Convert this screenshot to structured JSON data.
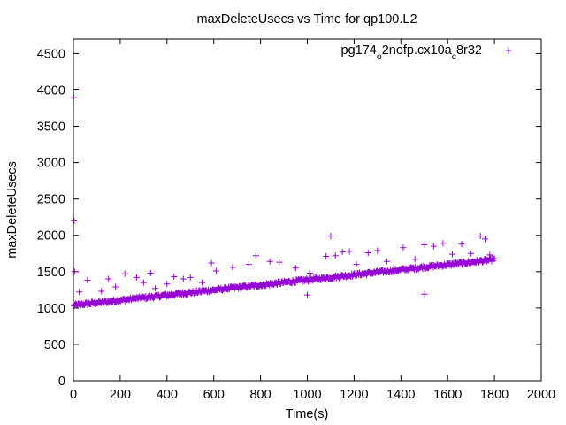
{
  "chart_data": {
    "type": "scatter",
    "title": "maxDeleteUsecs vs Time for qp100.L2",
    "xlabel": "Time(s)",
    "ylabel": "maxDeleteUsecs",
    "xlim": [
      0,
      2000
    ],
    "ylim": [
      0,
      4700
    ],
    "xticks": [
      "0",
      "200",
      "400",
      "600",
      "800",
      "1000",
      "1200",
      "1400",
      "1600",
      "1800",
      "2000"
    ],
    "yticks": [
      "0",
      "500",
      "1000",
      "1500",
      "2000",
      "2500",
      "3000",
      "3500",
      "4000",
      "4500"
    ],
    "xtick_values": [
      0,
      200,
      400,
      600,
      800,
      1000,
      1200,
      1400,
      1600,
      1800,
      2000
    ],
    "ytick_values": [
      0,
      500,
      1000,
      1500,
      2000,
      2500,
      3000,
      3500,
      4000,
      4500
    ],
    "grid": false,
    "legend_position": "top-right",
    "marker_color": "#9400d3",
    "series": [
      {
        "name_parts": [
          {
            "text": "pg174",
            "sub": false
          },
          {
            "text": "o",
            "sub": true
          },
          {
            "text": "2nofp.cx10a",
            "sub": false
          },
          {
            "text": "c",
            "sub": true
          },
          {
            "text": "8r32",
            "sub": false
          }
        ],
        "trend": {
          "x_start": 0,
          "x_end": 1800,
          "y_start": 1030,
          "y_end": 1660,
          "count": 600
        },
        "outliers": [
          {
            "x": 2,
            "y": 3900
          },
          {
            "x": 3,
            "y": 2200
          },
          {
            "x": 5,
            "y": 1500
          },
          {
            "x": 25,
            "y": 1220
          },
          {
            "x": 60,
            "y": 1380
          },
          {
            "x": 120,
            "y": 1230
          },
          {
            "x": 150,
            "y": 1400
          },
          {
            "x": 180,
            "y": 1290
          },
          {
            "x": 220,
            "y": 1470
          },
          {
            "x": 270,
            "y": 1420
          },
          {
            "x": 300,
            "y": 1350
          },
          {
            "x": 330,
            "y": 1480
          },
          {
            "x": 350,
            "y": 1270
          },
          {
            "x": 400,
            "y": 1330
          },
          {
            "x": 430,
            "y": 1430
          },
          {
            "x": 470,
            "y": 1400
          },
          {
            "x": 500,
            "y": 1420
          },
          {
            "x": 550,
            "y": 1350
          },
          {
            "x": 590,
            "y": 1620
          },
          {
            "x": 610,
            "y": 1510
          },
          {
            "x": 680,
            "y": 1560
          },
          {
            "x": 750,
            "y": 1600
          },
          {
            "x": 780,
            "y": 1720
          },
          {
            "x": 840,
            "y": 1640
          },
          {
            "x": 880,
            "y": 1630
          },
          {
            "x": 950,
            "y": 1550
          },
          {
            "x": 1000,
            "y": 1180
          },
          {
            "x": 1010,
            "y": 1480
          },
          {
            "x": 1080,
            "y": 1710
          },
          {
            "x": 1100,
            "y": 1990
          },
          {
            "x": 1120,
            "y": 1720
          },
          {
            "x": 1150,
            "y": 1770
          },
          {
            "x": 1180,
            "y": 1780
          },
          {
            "x": 1210,
            "y": 1600
          },
          {
            "x": 1260,
            "y": 1760
          },
          {
            "x": 1300,
            "y": 1790
          },
          {
            "x": 1340,
            "y": 1640
          },
          {
            "x": 1410,
            "y": 1830
          },
          {
            "x": 1460,
            "y": 1670
          },
          {
            "x": 1500,
            "y": 1190
          },
          {
            "x": 1500,
            "y": 1870
          },
          {
            "x": 1540,
            "y": 1850
          },
          {
            "x": 1580,
            "y": 1890
          },
          {
            "x": 1620,
            "y": 1740
          },
          {
            "x": 1660,
            "y": 1880
          },
          {
            "x": 1700,
            "y": 1750
          },
          {
            "x": 1740,
            "y": 1990
          },
          {
            "x": 1760,
            "y": 1950
          },
          {
            "x": 1780,
            "y": 1730
          }
        ]
      }
    ]
  }
}
